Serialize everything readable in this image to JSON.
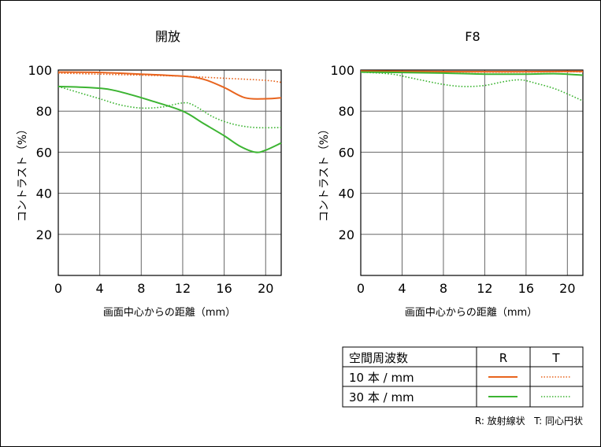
{
  "chart_data": [
    {
      "type": "line",
      "title": "開放",
      "xlabel": "画面中心からの距離（mm）",
      "ylabel": "コントラスト（%）",
      "xlim": [
        0,
        21.5
      ],
      "ylim": [
        0,
        100
      ],
      "x_ticks": [
        0,
        4,
        8,
        12,
        16,
        20
      ],
      "y_ticks": [
        20,
        40,
        60,
        80,
        100
      ],
      "grid": true,
      "series": [
        {
          "name": "10本/mm R",
          "color": "#e8641e",
          "dash": false,
          "points": [
            [
              0,
              99
            ],
            [
              4,
              98.8
            ],
            [
              8,
              98
            ],
            [
              12,
              97
            ],
            [
              14,
              95.5
            ],
            [
              16,
              91.5
            ],
            [
              18,
              86.5
            ],
            [
              20,
              86
            ],
            [
              21.5,
              86.5
            ]
          ]
        },
        {
          "name": "10本/mm T",
          "color": "#e8641e",
          "dash": true,
          "points": [
            [
              0,
              98.5
            ],
            [
              4,
              98
            ],
            [
              8,
              97.5
            ],
            [
              12,
              97
            ],
            [
              16,
              96
            ],
            [
              20,
              95
            ],
            [
              21.5,
              94
            ]
          ]
        },
        {
          "name": "30本/mm R",
          "color": "#3cb432",
          "dash": false,
          "points": [
            [
              0,
              92
            ],
            [
              3,
              91.5
            ],
            [
              5,
              90.5
            ],
            [
              7,
              88
            ],
            [
              9,
              85
            ],
            [
              12,
              80
            ],
            [
              14,
              74
            ],
            [
              16,
              68
            ],
            [
              17.5,
              63
            ],
            [
              19,
              60
            ],
            [
              20,
              61
            ],
            [
              21.5,
              64.5
            ]
          ]
        },
        {
          "name": "30本/mm T",
          "color": "#3cb432",
          "dash": true,
          "points": [
            [
              0,
              92
            ],
            [
              2,
              89
            ],
            [
              4,
              86
            ],
            [
              6,
              83
            ],
            [
              8,
              81.5
            ],
            [
              10,
              82
            ],
            [
              12,
              84
            ],
            [
              13,
              83
            ],
            [
              15,
              77
            ],
            [
              17,
              73.5
            ],
            [
              19,
              72
            ],
            [
              21.5,
              72
            ]
          ]
        }
      ]
    },
    {
      "type": "line",
      "title": "F8",
      "xlabel": "画面中心からの距離（mm）",
      "ylabel": "コントラスト（%）",
      "xlim": [
        0,
        21.5
      ],
      "ylim": [
        0,
        100
      ],
      "x_ticks": [
        0,
        4,
        8,
        12,
        16,
        20
      ],
      "y_ticks": [
        20,
        40,
        60,
        80,
        100
      ],
      "grid": true,
      "series": [
        {
          "name": "10本/mm R",
          "color": "#e8641e",
          "dash": false,
          "points": [
            [
              0,
              99.5
            ],
            [
              6,
              99.3
            ],
            [
              12,
              99.2
            ],
            [
              16,
              99.2
            ],
            [
              20,
              99.3
            ],
            [
              21.5,
              99.3
            ]
          ]
        },
        {
          "name": "10本/mm T",
          "color": "#e8641e",
          "dash": true,
          "points": [
            [
              0,
              99.3
            ],
            [
              6,
              99.2
            ],
            [
              12,
              99
            ],
            [
              16,
              99
            ],
            [
              20,
              99.2
            ],
            [
              21.5,
              99
            ]
          ]
        },
        {
          "name": "30本/mm R",
          "color": "#3cb432",
          "dash": false,
          "points": [
            [
              0,
              99
            ],
            [
              4,
              98.8
            ],
            [
              8,
              98.5
            ],
            [
              12,
              98
            ],
            [
              16,
              98
            ],
            [
              19,
              98.2
            ],
            [
              21.5,
              97.5
            ]
          ]
        },
        {
          "name": "30本/mm T",
          "color": "#3cb432",
          "dash": true,
          "points": [
            [
              0,
              99
            ],
            [
              3,
              98
            ],
            [
              5,
              96
            ],
            [
              8,
              93
            ],
            [
              10,
              92
            ],
            [
              12,
              92.5
            ],
            [
              14,
              94.5
            ],
            [
              15.5,
              95.2
            ],
            [
              17,
              93.5
            ],
            [
              19,
              90.5
            ],
            [
              21.5,
              85
            ]
          ]
        }
      ]
    }
  ],
  "legend": {
    "header": "空間周波数",
    "col_r": "R",
    "col_t": "T",
    "row_10": "10 本 / mm",
    "row_30": "30 本 / mm",
    "orange": "#e8641e",
    "green": "#3cb432"
  },
  "footnote": "R: 放射線状   T: 同心円状"
}
